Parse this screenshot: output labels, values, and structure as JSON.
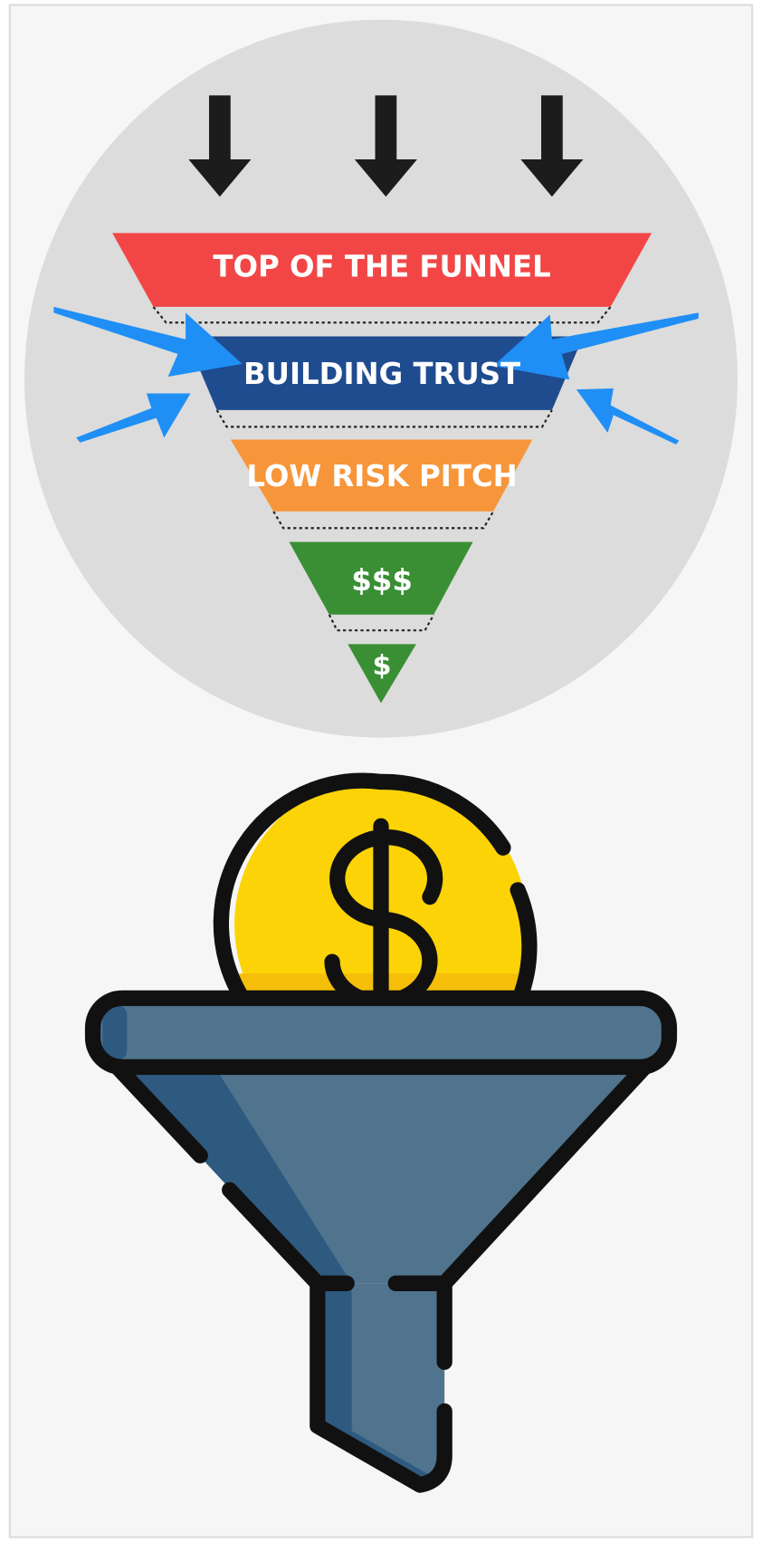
{
  "funnel": {
    "stages": [
      "TOP OF THE FUNNEL",
      "BUILDING TRUST",
      "LOW RISK PITCH",
      "$$$",
      "$"
    ]
  }
}
